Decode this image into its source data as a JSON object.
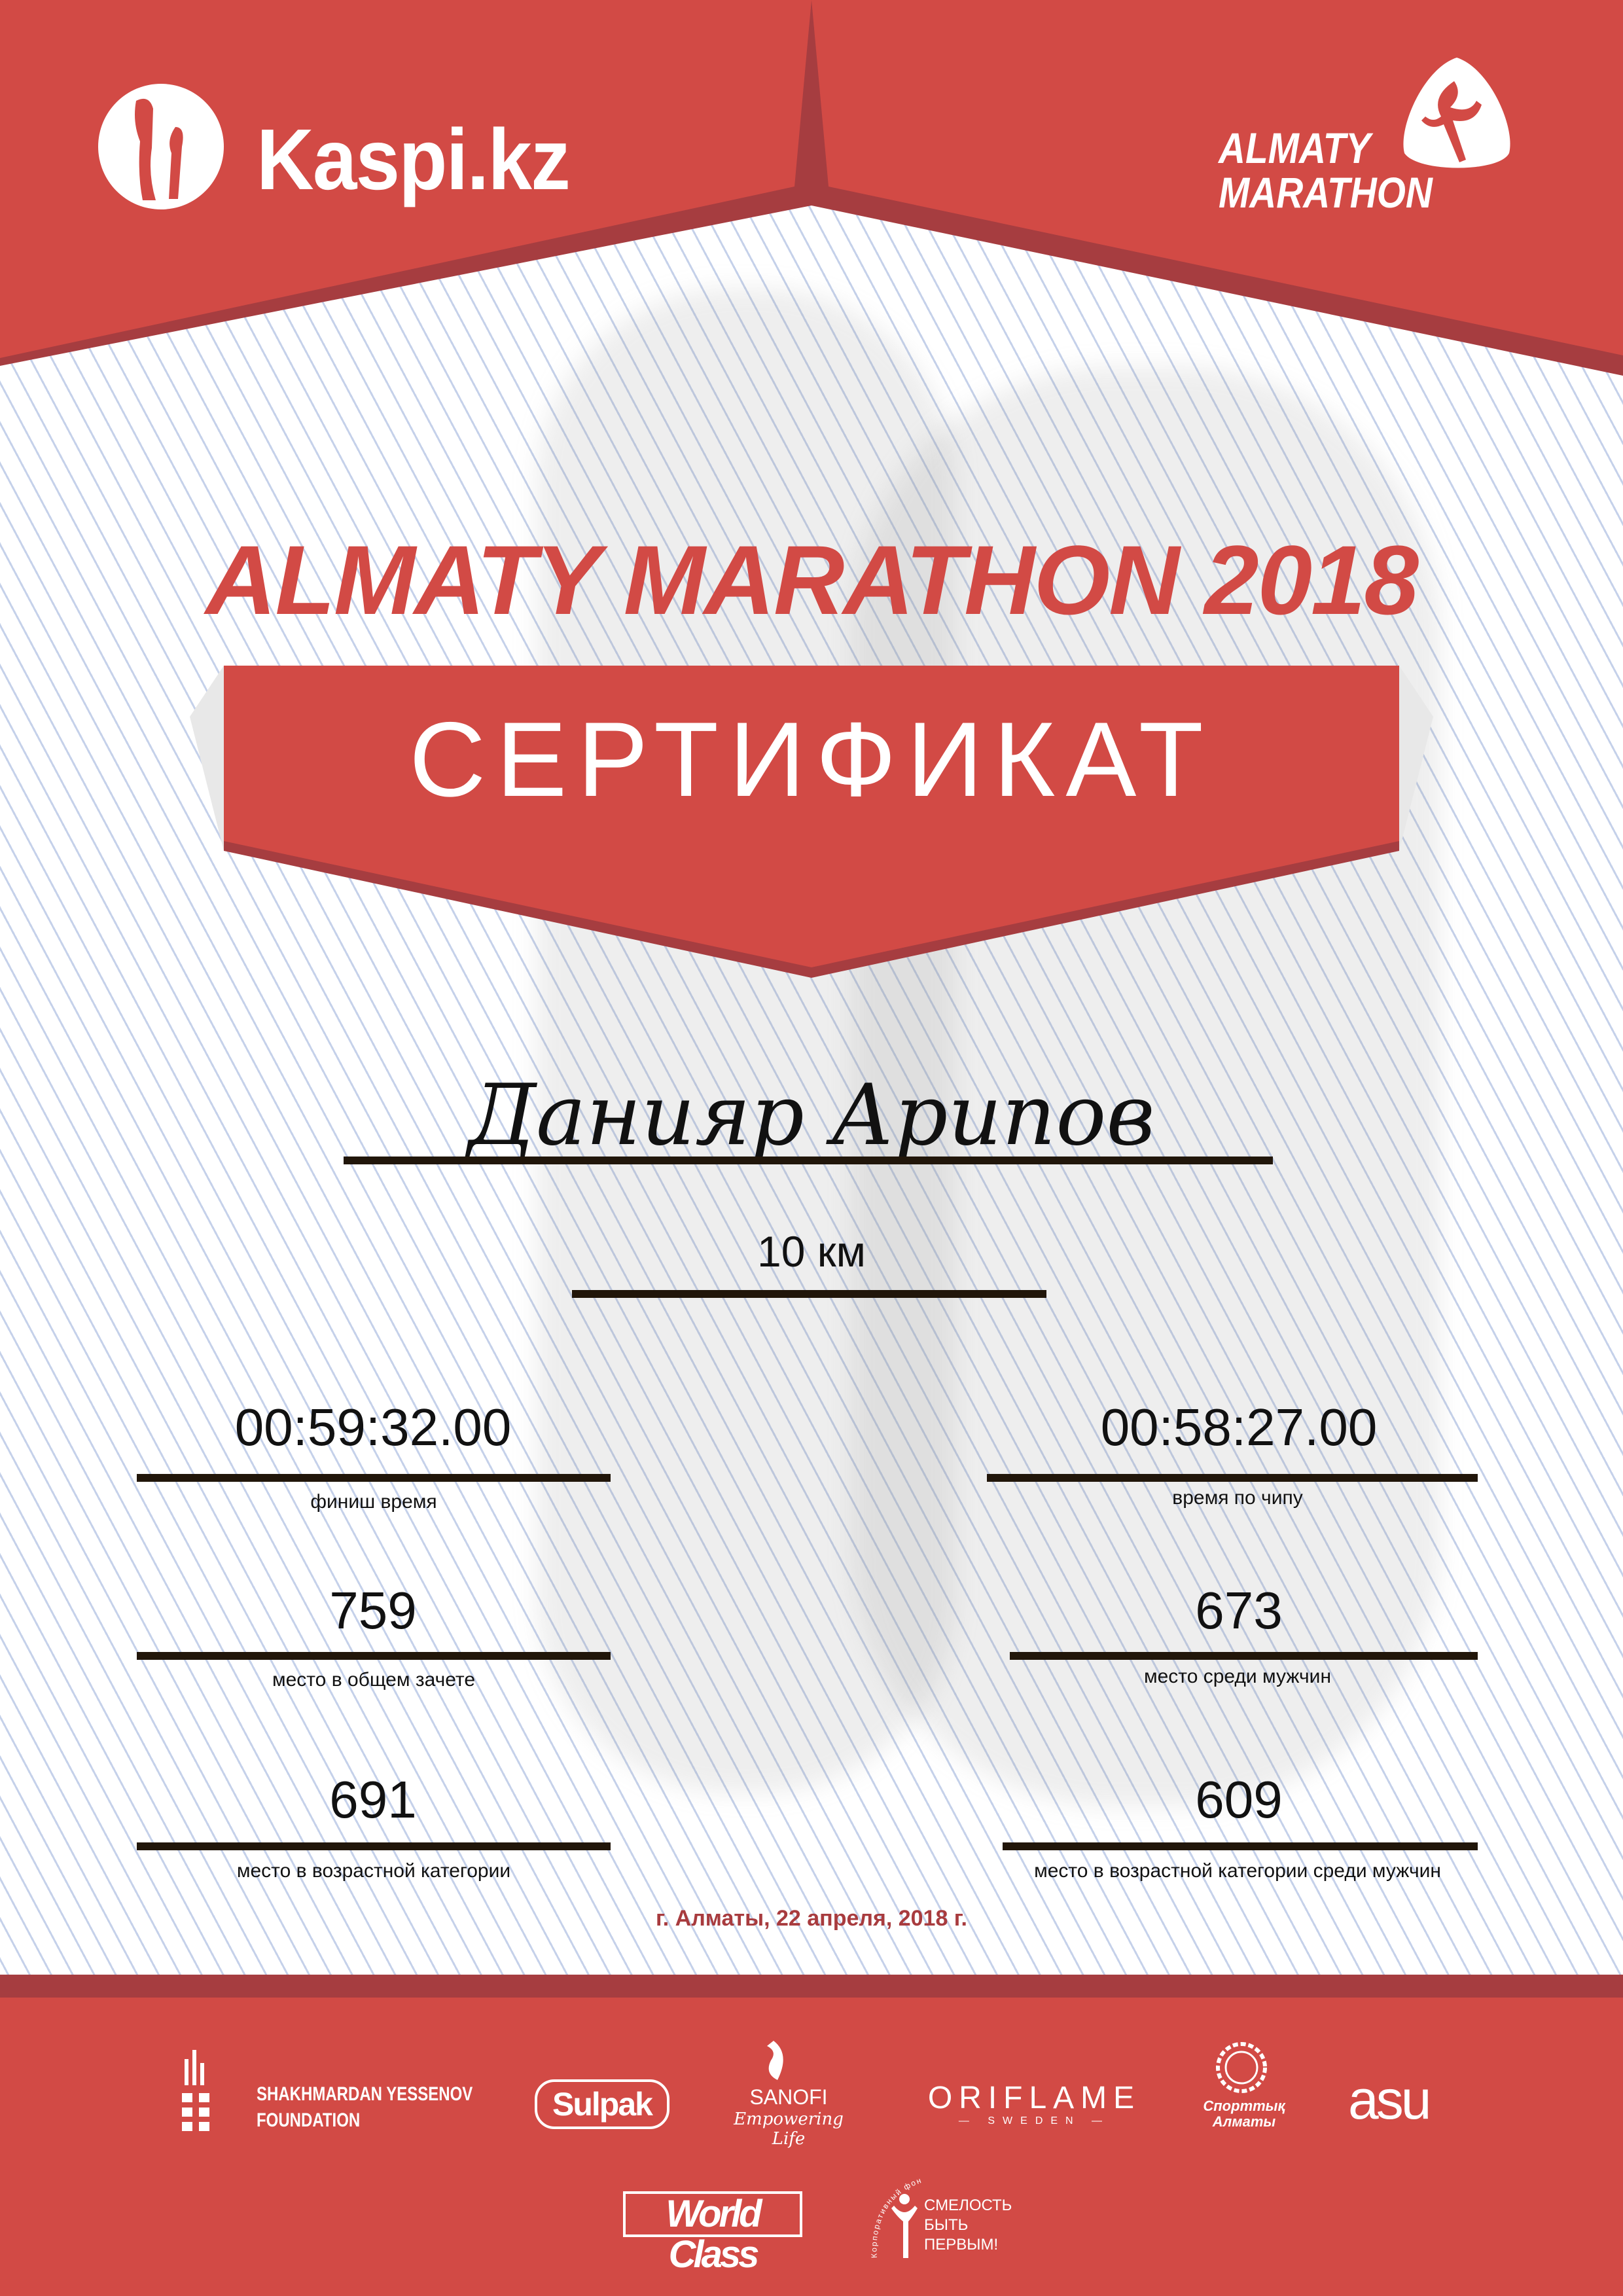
{
  "colors": {
    "brand_red": "#d24a45",
    "dark_red": "#a63d40",
    "date_red": "#a83b3e",
    "rule": "#21160a",
    "lines": "#c5d1ea"
  },
  "header": {
    "sponsor_logo": "Kaspi.kz",
    "event_logo_line1": "ALMATY",
    "event_logo_line2": "MARATHON"
  },
  "title": "ALMATY MARATHON 2018",
  "banner": "СЕРТИФИКАТ",
  "participant_name": "Данияр Арипов",
  "distance": "10 км",
  "stats": [
    {
      "value": "00:59:32.00",
      "label": "финиш время"
    },
    {
      "value": "00:58:27.00",
      "label": "время по чипу"
    },
    {
      "value": "759",
      "label": "место в общем зачете"
    },
    {
      "value": "673",
      "label": "место среди мужчин"
    },
    {
      "value": "691",
      "label": "место в возрастной категории"
    },
    {
      "value": "609",
      "label": "место в возрастной категории среди мужчин"
    }
  ],
  "date": "г. Алматы, 22 апреля, 2018 г.",
  "sponsors": {
    "yessenov_line1": "SHAKHMARDAN YESSENOV",
    "yessenov_line2": "FOUNDATION",
    "sulpak": "Sulpak",
    "sanofi": "SANOFI",
    "sanofi_tagline": "Empowering Life",
    "oriflame": "ORIFLAME",
    "oriflame_sub": "SWEDEN",
    "sport_almaty": "Спорттық Алматы",
    "asu": "asu",
    "worldclass": "World Class",
    "smelost_arc": "Корпоративный фонд",
    "smelost_line1": "СМЕЛОСТЬ",
    "smelost_line2": "БЫТЬ",
    "smelost_line3": "ПЕРВЫМ!"
  }
}
